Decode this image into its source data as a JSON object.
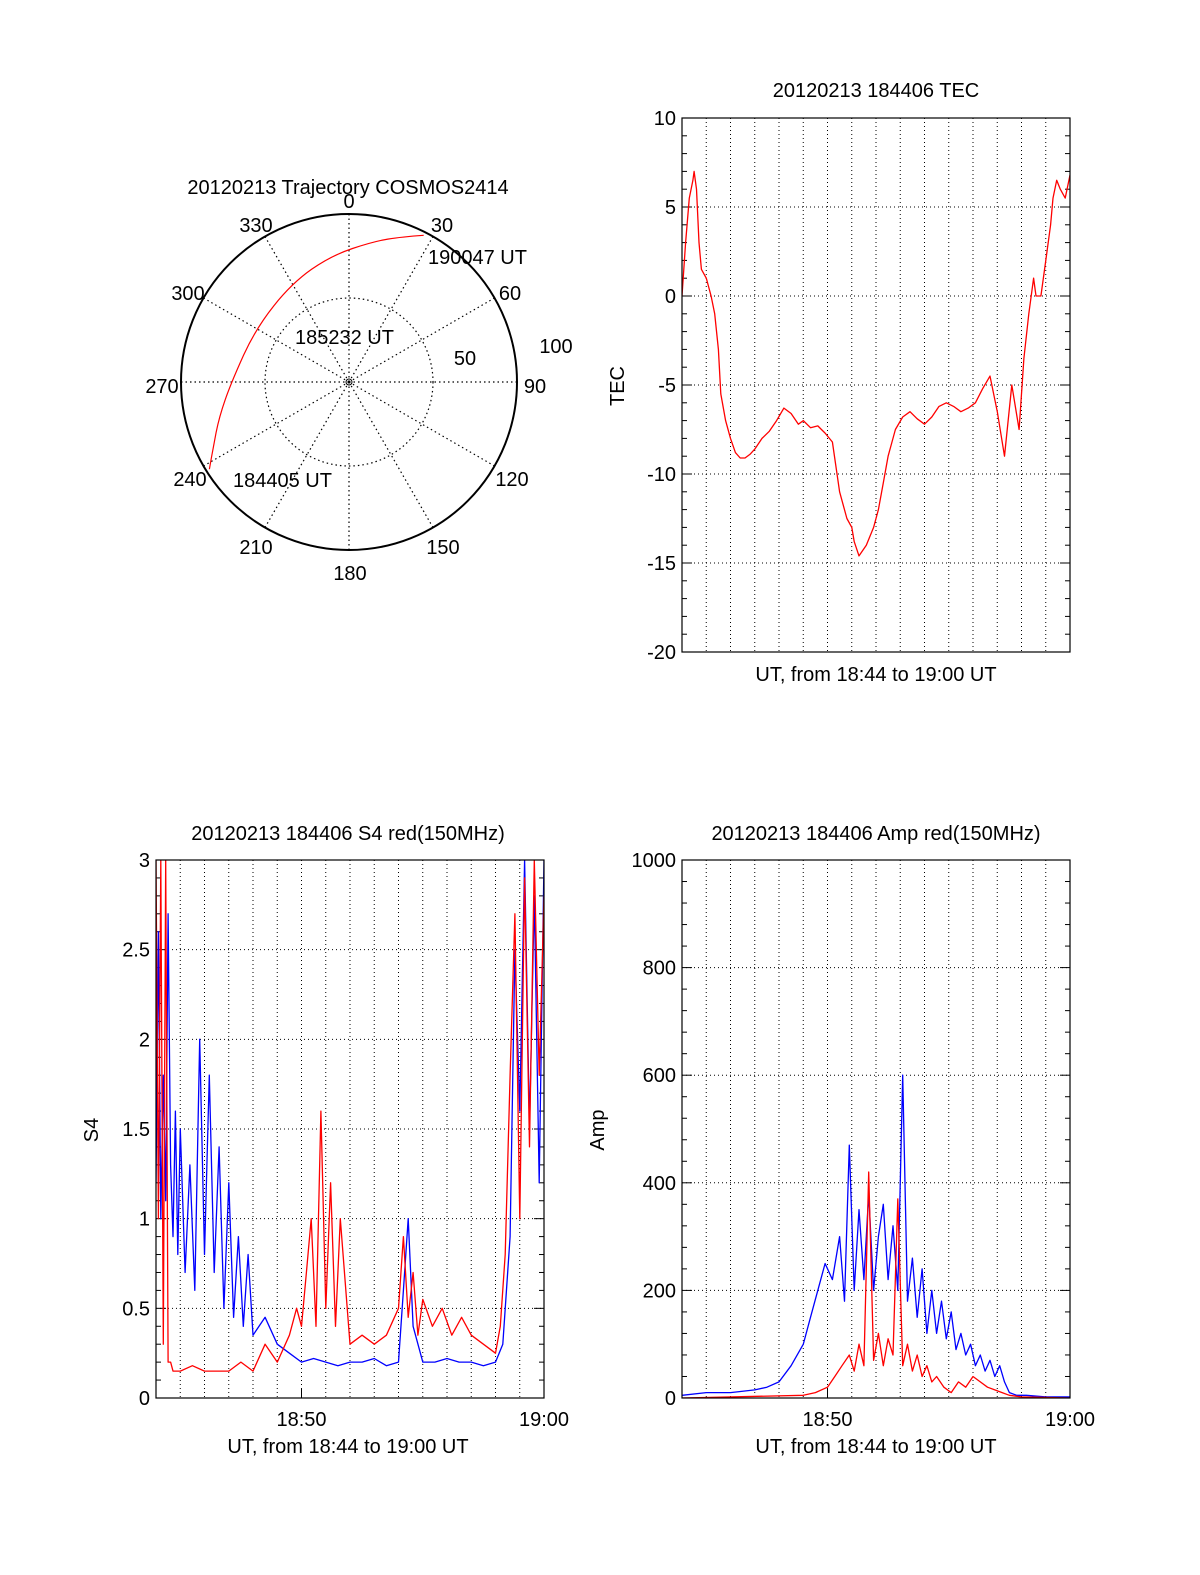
{
  "colors": {
    "red": "#ff0000",
    "blue": "#0000ff",
    "axis": "#000000",
    "grid": "#000000"
  },
  "chart_data": [
    {
      "type": "polar",
      "title": "20120213 Trajectory COSMOS2414",
      "azimuth_labels": [
        "0",
        "30",
        "60",
        "90",
        "120",
        "150",
        "180",
        "210",
        "240",
        "270",
        "300",
        "330"
      ],
      "ring_labels": [
        "50",
        "100"
      ],
      "annotations": [
        "190047 UT",
        "185232 UT",
        "184405 UT"
      ],
      "trajectory": {
        "color": "red",
        "points": [
          {
            "az": 27,
            "dist": 98
          },
          {
            "az": 20,
            "dist": 92
          },
          {
            "az": 10,
            "dist": 85
          },
          {
            "az": 352,
            "dist": 76
          },
          {
            "az": 330,
            "dist": 68
          },
          {
            "az": 300,
            "dist": 64
          },
          {
            "az": 270,
            "dist": 70
          },
          {
            "az": 255,
            "dist": 80
          },
          {
            "az": 244,
            "dist": 90
          },
          {
            "az": 238,
            "dist": 98
          }
        ]
      }
    },
    {
      "type": "line",
      "title": "20120213 184406 TEC",
      "xlabel": "UT, from 18:44 to 19:00 UT",
      "ylabel": "TEC",
      "xlim": [
        0,
        16
      ],
      "ylim": [
        -20,
        10
      ],
      "yticks": [
        "-20",
        "-15",
        "-10",
        "-5",
        "0",
        "5",
        "10"
      ],
      "xticks": [],
      "grid": true,
      "series": [
        {
          "color": "red",
          "x": [
            0.0,
            0.15,
            0.3,
            0.45,
            0.5,
            0.6,
            0.7,
            0.8,
            1.0,
            1.2,
            1.35,
            1.5,
            1.6,
            1.8,
            2.0,
            2.2,
            2.4,
            2.6,
            2.8,
            3.0,
            3.3,
            3.6,
            3.9,
            4.2,
            4.5,
            4.8,
            5.0,
            5.3,
            5.6,
            5.9,
            6.2,
            6.5,
            6.8,
            7.0,
            7.1,
            7.3,
            7.6,
            7.9,
            8.1,
            8.3,
            8.5,
            8.8,
            9.1,
            9.4,
            9.7,
            10.0,
            10.3,
            10.6,
            10.9,
            11.2,
            11.5,
            11.8,
            12.1,
            12.4,
            12.7,
            13.0,
            13.3,
            13.6,
            13.9,
            14.1,
            14.3,
            14.5,
            14.6,
            14.8,
            15.0,
            15.2,
            15.3,
            15.45,
            15.6,
            15.8,
            16.0
          ],
          "y": [
            0.0,
            3.0,
            5.5,
            6.5,
            7.0,
            6.0,
            3.0,
            1.5,
            1.0,
            0.0,
            -1.0,
            -3.0,
            -5.5,
            -7.0,
            -8.0,
            -8.8,
            -9.1,
            -9.1,
            -8.9,
            -8.6,
            -8.0,
            -7.6,
            -7.0,
            -6.3,
            -6.6,
            -7.2,
            -7.0,
            -7.4,
            -7.3,
            -7.7,
            -8.2,
            -11.0,
            -12.5,
            -13.0,
            -13.8,
            -14.6,
            -14.0,
            -13.0,
            -12.0,
            -10.5,
            -9.0,
            -7.5,
            -6.8,
            -6.5,
            -6.9,
            -7.2,
            -6.8,
            -6.2,
            -6.0,
            -6.2,
            -6.5,
            -6.3,
            -6.0,
            -5.2,
            -4.5,
            -6.5,
            -9.0,
            -5.0,
            -7.5,
            -3.5,
            -1.0,
            1.0,
            0.0,
            0.0,
            2.0,
            4.0,
            5.5,
            6.5,
            6.0,
            5.5,
            6.8
          ]
        }
      ]
    },
    {
      "type": "line",
      "title": "20120213 184406 S4 red(150MHz)",
      "xlabel": "UT, from 18:44 to 19:00 UT",
      "ylabel": "S4",
      "xlim": [
        0,
        16
      ],
      "ylim": [
        0,
        3
      ],
      "yticks": [
        "0",
        "0.5",
        "1",
        "1.5",
        "2",
        "2.5",
        "3"
      ],
      "xticks": [
        {
          "value": 6,
          "label": "18:50"
        },
        {
          "value": 16,
          "label": "19:00"
        }
      ],
      "grid": true,
      "series": [
        {
          "color": "blue",
          "x": [
            0.0,
            0.1,
            0.2,
            0.3,
            0.4,
            0.5,
            0.6,
            0.7,
            0.8,
            0.9,
            1.0,
            1.2,
            1.4,
            1.6,
            1.8,
            2.0,
            2.2,
            2.4,
            2.6,
            2.8,
            3.0,
            3.2,
            3.4,
            3.6,
            3.8,
            4.0,
            4.5,
            5.0,
            5.5,
            6.0,
            6.5,
            7.0,
            7.5,
            8.0,
            8.5,
            9.0,
            9.5,
            10.0,
            10.2,
            10.4,
            10.6,
            11.0,
            11.5,
            12.0,
            12.5,
            13.0,
            13.5,
            14.0,
            14.3,
            14.6,
            14.8,
            15.0,
            15.2,
            15.4,
            15.6,
            15.8,
            16.0
          ],
          "y": [
            1.2,
            2.6,
            1.0,
            1.8,
            1.1,
            2.7,
            1.3,
            0.9,
            1.6,
            0.8,
            1.5,
            0.7,
            1.3,
            0.6,
            2.0,
            0.8,
            1.8,
            0.7,
            1.4,
            0.5,
            1.2,
            0.45,
            0.9,
            0.4,
            0.8,
            0.35,
            0.45,
            0.3,
            0.25,
            0.2,
            0.22,
            0.2,
            0.18,
            0.2,
            0.2,
            0.22,
            0.18,
            0.2,
            0.6,
            1.0,
            0.4,
            0.2,
            0.2,
            0.22,
            0.2,
            0.2,
            0.18,
            0.2,
            0.3,
            0.9,
            2.5,
            1.6,
            3.0,
            1.5,
            2.8,
            1.2,
            3.0
          ]
        },
        {
          "color": "red",
          "x": [
            0.0,
            0.1,
            0.2,
            0.3,
            0.4,
            0.5,
            0.6,
            0.7,
            1.0,
            1.5,
            2.0,
            2.5,
            3.0,
            3.5,
            4.0,
            4.5,
            5.0,
            5.5,
            5.8,
            6.0,
            6.2,
            6.4,
            6.6,
            6.8,
            7.0,
            7.2,
            7.4,
            7.6,
            8.0,
            8.5,
            9.0,
            9.5,
            10.0,
            10.2,
            10.4,
            10.6,
            10.8,
            11.0,
            11.4,
            11.8,
            12.2,
            12.6,
            13.0,
            13.5,
            14.0,
            14.2,
            14.4,
            14.6,
            14.8,
            15.0,
            15.2,
            15.4,
            15.6,
            15.8,
            16.0
          ],
          "y": [
            3.0,
            1.0,
            3.0,
            0.3,
            3.0,
            0.2,
            0.2,
            0.15,
            0.15,
            0.18,
            0.15,
            0.15,
            0.15,
            0.2,
            0.15,
            0.3,
            0.2,
            0.35,
            0.5,
            0.4,
            0.7,
            1.0,
            0.4,
            1.6,
            0.5,
            1.2,
            0.4,
            1.0,
            0.3,
            0.35,
            0.3,
            0.35,
            0.5,
            0.9,
            0.45,
            0.7,
            0.35,
            0.55,
            0.4,
            0.5,
            0.35,
            0.45,
            0.35,
            0.3,
            0.25,
            0.4,
            0.8,
            1.8,
            2.7,
            1.0,
            2.9,
            1.4,
            3.0,
            1.8,
            2.8
          ]
        }
      ]
    },
    {
      "type": "line",
      "title": "20120213 184406 Amp red(150MHz)",
      "xlabel": "UT, from 18:44 to 19:00 UT",
      "ylabel": "Amp",
      "xlim": [
        0,
        16
      ],
      "ylim": [
        0,
        1000
      ],
      "yticks": [
        "0",
        "200",
        "400",
        "600",
        "800",
        "1000"
      ],
      "xticks": [
        {
          "value": 6,
          "label": "18:50"
        },
        {
          "value": 16,
          "label": "19:00"
        }
      ],
      "grid": true,
      "series": [
        {
          "color": "blue",
          "x": [
            0.0,
            1.0,
            2.0,
            3.0,
            3.5,
            4.0,
            4.5,
            5.0,
            5.3,
            5.6,
            5.9,
            6.2,
            6.5,
            6.7,
            6.9,
            7.1,
            7.3,
            7.5,
            7.7,
            7.9,
            8.1,
            8.3,
            8.5,
            8.7,
            8.9,
            9.1,
            9.3,
            9.5,
            9.7,
            9.9,
            10.1,
            10.3,
            10.5,
            10.7,
            10.9,
            11.1,
            11.3,
            11.5,
            11.7,
            11.9,
            12.1,
            12.3,
            12.5,
            12.7,
            12.9,
            13.1,
            13.3,
            13.5,
            13.8,
            14.2,
            15.0,
            16.0
          ],
          "y": [
            5,
            10,
            10,
            15,
            20,
            30,
            60,
            100,
            150,
            200,
            250,
            220,
            300,
            180,
            470,
            200,
            350,
            220,
            380,
            200,
            300,
            360,
            220,
            320,
            200,
            600,
            180,
            260,
            150,
            240,
            120,
            200,
            120,
            180,
            110,
            160,
            90,
            120,
            80,
            100,
            60,
            80,
            50,
            70,
            40,
            60,
            30,
            10,
            5,
            5,
            2,
            2
          ]
        },
        {
          "color": "red",
          "x": [
            0.0,
            5.0,
            5.5,
            6.0,
            6.3,
            6.6,
            6.9,
            7.1,
            7.3,
            7.5,
            7.7,
            7.9,
            8.1,
            8.3,
            8.5,
            8.7,
            8.9,
            9.1,
            9.3,
            9.5,
            9.7,
            9.9,
            10.1,
            10.3,
            10.5,
            10.8,
            11.1,
            11.4,
            11.7,
            12.0,
            12.3,
            12.6,
            12.9,
            13.2,
            13.5,
            14.0,
            16.0
          ],
          "y": [
            0,
            5,
            10,
            20,
            40,
            60,
            80,
            50,
            100,
            60,
            420,
            70,
            120,
            60,
            110,
            80,
            370,
            60,
            100,
            50,
            80,
            40,
            60,
            30,
            40,
            20,
            10,
            30,
            20,
            40,
            30,
            20,
            15,
            10,
            5,
            2,
            0
          ]
        }
      ]
    }
  ]
}
